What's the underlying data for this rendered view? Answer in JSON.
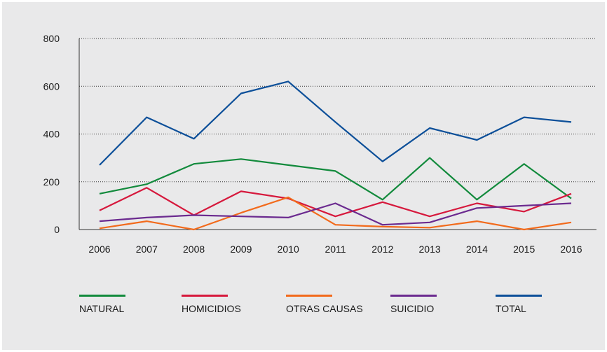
{
  "chart_data": {
    "type": "line",
    "categories": [
      "2006",
      "2007",
      "2008",
      "2009",
      "2010",
      "2011",
      "2012",
      "2013",
      "2014",
      "2015",
      "2016"
    ],
    "ylim": [
      0,
      800
    ],
    "yticks": [
      "0",
      "200",
      "400",
      "600",
      "800"
    ],
    "grid": "horizontal dotted",
    "legend_position": "bottom",
    "series": [
      {
        "name": "NATURAL",
        "color": "#128a3c",
        "values": [
          150,
          190,
          275,
          295,
          270,
          245,
          125,
          300,
          125,
          275,
          130
        ]
      },
      {
        "name": "HOMICIDIOS",
        "color": "#d6183c",
        "values": [
          80,
          175,
          60,
          160,
          130,
          55,
          115,
          55,
          110,
          75,
          150
        ]
      },
      {
        "name": "OTRAS CAUSAS",
        "color": "#f26a1b",
        "values": [
          5,
          35,
          0,
          70,
          135,
          20,
          12,
          8,
          35,
          0,
          30
        ]
      },
      {
        "name": "SUICIDIO",
        "color": "#6b2a8f",
        "values": [
          35,
          50,
          60,
          55,
          50,
          110,
          20,
          30,
          90,
          100,
          110
        ]
      },
      {
        "name": "TOTAL",
        "color": "#0c4f99",
        "values": [
          270,
          470,
          380,
          570,
          620,
          450,
          285,
          425,
          375,
          470,
          450
        ]
      }
    ]
  }
}
